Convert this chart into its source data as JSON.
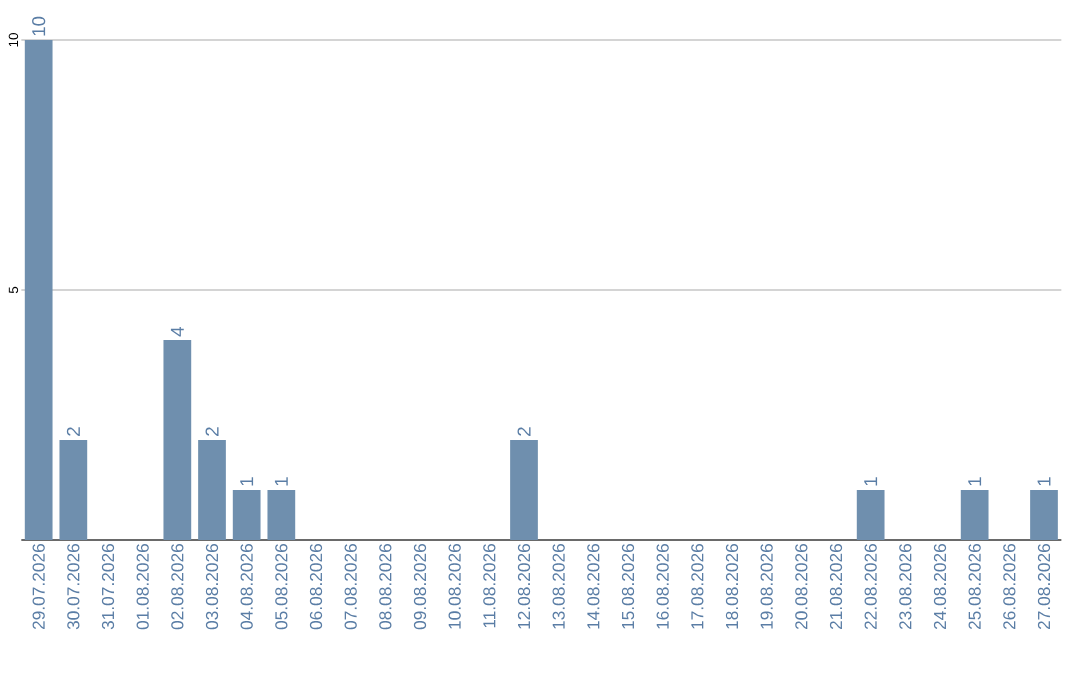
{
  "chart_data": {
    "type": "bar",
    "categories": [
      "29.07.2026",
      "30.07.2026",
      "31.07.2026",
      "01.08.2026",
      "02.08.2026",
      "03.08.2026",
      "04.08.2026",
      "05.08.2026",
      "06.08.2026",
      "07.08.2026",
      "08.08.2026",
      "09.08.2026",
      "10.08.2026",
      "11.08.2026",
      "12.08.2026",
      "13.08.2026",
      "14.08.2026",
      "15.08.2026",
      "16.08.2026",
      "17.08.2026",
      "18.08.2026",
      "19.08.2026",
      "20.08.2026",
      "21.08.2026",
      "22.08.2026",
      "23.08.2026",
      "24.08.2026",
      "25.08.2026",
      "26.08.2026",
      "27.08.2026"
    ],
    "values": [
      10,
      2,
      0,
      0,
      4,
      2,
      1,
      1,
      0,
      0,
      0,
      0,
      0,
      0,
      2,
      0,
      0,
      0,
      0,
      0,
      0,
      0,
      0,
      0,
      1,
      0,
      0,
      1,
      0,
      1
    ],
    "value_labels": [
      "10",
      "2",
      null,
      null,
      "4",
      "2",
      "1",
      "1",
      null,
      null,
      null,
      null,
      null,
      null,
      "2",
      null,
      null,
      null,
      null,
      null,
      null,
      null,
      null,
      null,
      "1",
      null,
      null,
      "1",
      null,
      "1"
    ],
    "color": "#6f8fae",
    "ylim": [
      0,
      10
    ],
    "yticks": [
      {
        "value": 0,
        "label": null
      },
      5,
      10
    ],
    "grid": "y"
  }
}
